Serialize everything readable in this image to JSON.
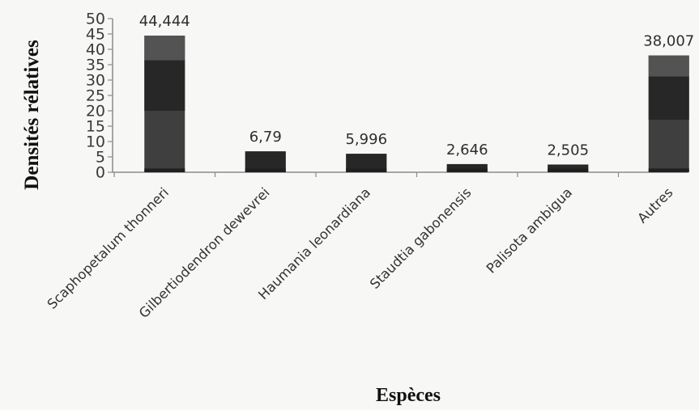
{
  "chart_data": {
    "type": "bar",
    "title": "",
    "xlabel": "Espèces",
    "ylabel": "Densités rélatives",
    "ylim": [
      0,
      50
    ],
    "yticks": [
      "0",
      "5",
      "10",
      "15",
      "20",
      "25",
      "30",
      "35",
      "40",
      "45",
      "50"
    ],
    "grid": false,
    "legend": "none",
    "categories": [
      "Scaphopetalum thonneri",
      "Gilbertiodendron dewevrei",
      "Haumania leonardiana",
      "Staudtia gabonensis",
      "Palisota ambigua",
      "Autres"
    ],
    "values": [
      44.444,
      6.79,
      5.996,
      2.646,
      2.505,
      38.007
    ],
    "data_labels": [
      "44,444",
      "6,79",
      "5,996",
      "2,646",
      "2,505",
      "38,007"
    ],
    "colors": {
      "bar_dark": "#272727",
      "bar_mid": "#3f3f3f",
      "bar_top": "#535353",
      "axis": "#8c8c8c"
    }
  }
}
